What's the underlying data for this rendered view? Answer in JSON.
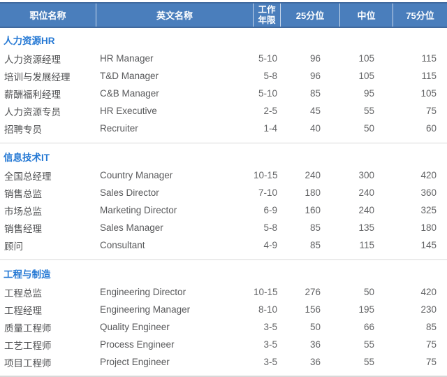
{
  "table": {
    "columns": [
      "职位名称",
      "英文名称",
      "工作年限",
      "25分位",
      "中位",
      "75分位"
    ],
    "sections": [
      {
        "title": "人力资源HR",
        "rows": [
          {
            "cn": "人力资源经理",
            "en": "HR Manager",
            "years": "5-10",
            "p25": "96",
            "p50": "105",
            "p75": "115"
          },
          {
            "cn": "培训与发展经理",
            "en": "T&D Manager",
            "years": "5-8",
            "p25": "96",
            "p50": "105",
            "p75": "115"
          },
          {
            "cn": "薪酬福利经理",
            "en": "C&B Manager",
            "years": "5-10",
            "p25": "85",
            "p50": "95",
            "p75": "105"
          },
          {
            "cn": "人力资源专员",
            "en": "HR Executive",
            "years": "2-5",
            "p25": "45",
            "p50": "55",
            "p75": "75"
          },
          {
            "cn": "招聘专员",
            "en": "Recruiter",
            "years": "1-4",
            "p25": "40",
            "p50": "50",
            "p75": "60"
          }
        ]
      },
      {
        "title": "信息技术IT",
        "rows": [
          {
            "cn": "全国总经理",
            "en": "Country Manager",
            "years": "10-15",
            "p25": "240",
            "p50": "300",
            "p75": "420"
          },
          {
            "cn": "销售总监",
            "en": "Sales Director",
            "years": "7-10",
            "p25": "180",
            "p50": "240",
            "p75": "360"
          },
          {
            "cn": "市场总监",
            "en": "Marketing Director",
            "years": "6-9",
            "p25": "160",
            "p50": "240",
            "p75": "325"
          },
          {
            "cn": "销售经理",
            "en": "Sales Manager",
            "years": "5-8",
            "p25": "85",
            "p50": "135",
            "p75": "180"
          },
          {
            "cn": "顾问",
            "en": "Consultant",
            "years": "4-9",
            "p25": "85",
            "p50": "115",
            "p75": "145"
          }
        ]
      },
      {
        "title": "工程与制造",
        "rows": [
          {
            "cn": "工程总监",
            "en": "Engineering Director",
            "years": "10-15",
            "p25": "276",
            "p50": "50",
            "p75": "420"
          },
          {
            "cn": "工程经理",
            "en": "Engineering Manager",
            "years": "8-10",
            "p25": "156",
            "p50": "195",
            "p75": "230"
          },
          {
            "cn": "质量工程师",
            "en": "Quality Engineer",
            "years": "3-5",
            "p25": "50",
            "p50": "66",
            "p75": "85"
          },
          {
            "cn": "工艺工程师",
            "en": "Process Engineer",
            "years": "3-5",
            "p25": "36",
            "p50": "55",
            "p75": "75"
          },
          {
            "cn": "项目工程师",
            "en": "Project Engineer",
            "years": "3-5",
            "p25": "36",
            "p50": "55",
            "p75": "75"
          }
        ]
      }
    ]
  },
  "colors": {
    "header_bg": "#4A7EBC",
    "header_text": "#FFFFFF",
    "section_title": "#2478D4",
    "body_text": "#58595B",
    "divider": "#D8D8D8"
  }
}
